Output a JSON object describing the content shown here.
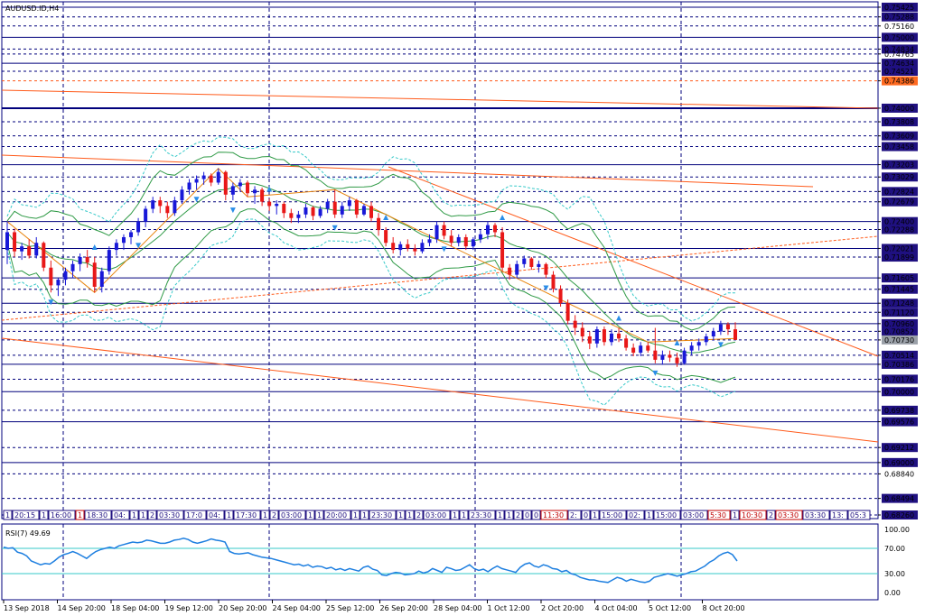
{
  "chart_title": "AUDUSD.ID,H4",
  "rsi_label": "RSI(7) 49.69",
  "rsi_levels": {
    "upper": 70,
    "lower": 30
  },
  "colors": {
    "frame": "#00007c",
    "grid": "#00007c",
    "bull": "#1818d8",
    "bear": "#e81818",
    "band_outer": "#36c9c9",
    "band_mid": "#2f9a46",
    "trendline": "#ff5a1a",
    "zigzag": "#e8840c",
    "rsi_line": "#1e7fe0",
    "rsi_level": "#36c9c9",
    "arrow": "#2a8de8",
    "price_box_dark": "#1f1080",
    "price_box_red": "#ff6a20"
  },
  "price_scale": {
    "labels": [
      "0.75425",
      "0.75288",
      "0.75160",
      "0.75000",
      "0.74834",
      "0.74765",
      "0.74634",
      "0.74521",
      "0.74386",
      "0.74000",
      "0.73808",
      "0.73609",
      "0.73458",
      "0.73203",
      "0.73029",
      "0.72824",
      "0.72679",
      "0.72400",
      "0.72288",
      "0.72021",
      "0.71899",
      "0.71605",
      "0.71445",
      "0.71248",
      "0.71120",
      "0.70960",
      "0.70852",
      "0.70730",
      "0.70514",
      "0.70386",
      "0.70176",
      "0.70000",
      "0.69738",
      "0.69576",
      "0.69212",
      "0.69000",
      "0.68840",
      "0.68494",
      "0.68260"
    ],
    "boxed": [
      "0.75425",
      "0.75288",
      "0.75000",
      "0.74834",
      "0.74634",
      "0.74521",
      "0.74386",
      "0.74000",
      "0.73808",
      "0.73609",
      "0.73458",
      "0.73203",
      "0.73029",
      "0.72824",
      "0.72679",
      "0.72400",
      "0.72288",
      "0.72021",
      "0.71899",
      "0.71605",
      "0.71445",
      "0.71248",
      "0.71120",
      "0.70960",
      "0.70852",
      "0.70730",
      "0.70514",
      "0.70386",
      "0.70176",
      "0.70000",
      "0.69738",
      "0.69576",
      "0.69212",
      "0.69000",
      "0.68494",
      "0.68260"
    ],
    "red_box": "0.74386",
    "current_price": "0.70730"
  },
  "rsi_scale": {
    "labels": [
      "100.00",
      "70.00",
      "30.00",
      "0.00"
    ]
  },
  "time_labels": [
    "13 Sep 2018",
    "14 Sep 20:00",
    "18 Sep 04:00",
    "19 Sep 12:00",
    "20 Sep 20:00",
    "24 Sep 04:00",
    "25 Sep 12:00",
    "26 Sep 20:00",
    "28 Sep 04:00",
    "1 Oct 12:00",
    "2 Oct 20:00",
    "4 Oct 04:00",
    "5 Oct 12:00",
    "8 Oct 20:00"
  ],
  "session_tags": [
    {
      "text": "1",
      "color": "#1f1080"
    },
    {
      "text": "20:15",
      "color": "#1f1080"
    },
    {
      "text": "1",
      "color": "#1f1080"
    },
    {
      "text": "16:00",
      "color": "#1f1080"
    },
    {
      "text": "1",
      "color": "#c00000"
    },
    {
      "text": "18:30",
      "color": "#1f1080"
    },
    {
      "text": "04:",
      "color": "#1f1080"
    },
    {
      "text": "1",
      "color": "#1f1080"
    },
    {
      "text": "1",
      "color": "#1f1080"
    },
    {
      "text": "2",
      "color": "#1f1080"
    },
    {
      "text": "03:30",
      "color": "#1f1080"
    },
    {
      "text": "17:0",
      "color": "#1f1080"
    },
    {
      "text": "04:",
      "color": "#1f1080"
    },
    {
      "text": "1",
      "color": "#1f1080"
    },
    {
      "text": "17:30",
      "color": "#1f1080"
    },
    {
      "text": "1",
      "color": "#1f1080"
    },
    {
      "text": "2",
      "color": "#1f1080"
    },
    {
      "text": "03:00",
      "color": "#1f1080"
    },
    {
      "text": "1",
      "color": "#1f1080"
    },
    {
      "text": "1",
      "color": "#1f1080"
    },
    {
      "text": "20:00",
      "color": "#1f1080"
    },
    {
      "text": "1",
      "color": "#1f1080"
    },
    {
      "text": "1",
      "color": "#1f1080"
    },
    {
      "text": "23:30",
      "color": "#1f1080"
    },
    {
      "text": "1",
      "color": "#1f1080"
    },
    {
      "text": "1",
      "color": "#1f1080"
    },
    {
      "text": "2",
      "color": "#1f1080"
    },
    {
      "text": "03:00",
      "color": "#1f1080"
    },
    {
      "text": "1",
      "color": "#1f1080"
    },
    {
      "text": "1",
      "color": "#1f1080"
    },
    {
      "text": "23:30",
      "color": "#1f1080"
    },
    {
      "text": "1",
      "color": "#1f1080"
    },
    {
      "text": "1",
      "color": "#1f1080"
    },
    {
      "text": "2",
      "color": "#1f1080"
    },
    {
      "text": "0",
      "color": "#1f1080"
    },
    {
      "text": "0",
      "color": "#1f1080"
    },
    {
      "text": "11:30",
      "color": "#c00000"
    },
    {
      "text": "2:",
      "color": "#1f1080"
    },
    {
      "text": "0",
      "color": "#1f1080"
    },
    {
      "text": "1",
      "color": "#1f1080"
    },
    {
      "text": "15:00",
      "color": "#1f1080"
    },
    {
      "text": "02:",
      "color": "#1f1080"
    },
    {
      "text": "1",
      "color": "#1f1080"
    },
    {
      "text": "15:00",
      "color": "#1f1080"
    },
    {
      "text": "03:00",
      "color": "#1f1080"
    },
    {
      "text": "5:30",
      "color": "#c00000"
    },
    {
      "text": "1",
      "color": "#1f1080"
    },
    {
      "text": "10:30",
      "color": "#c00000"
    },
    {
      "text": "2",
      "color": "#1f1080"
    },
    {
      "text": "03:30",
      "color": "#c00000"
    },
    {
      "text": "03:30",
      "color": "#1f1080"
    },
    {
      "text": "13:",
      "color": "#1f1080"
    },
    {
      "text": "05:3",
      "color": "#1f1080"
    },
    {
      "text": "15:55",
      "color": "#1f1080"
    },
    {
      "text": "04:00",
      "color": "#1f1080"
    },
    {
      "text": "20:",
      "color": "#1f1080"
    },
    {
      "text": "03:30",
      "color": "#1f1080"
    }
  ],
  "chart_data": {
    "type": "candlestick",
    "title": "AUDUSD.ID,H4",
    "timeframe": "H4",
    "ylim": [
      0.6826,
      0.7545
    ],
    "candles": [
      {
        "o": 0.72,
        "h": 0.724,
        "l": 0.718,
        "c": 0.7225
      },
      {
        "o": 0.7225,
        "h": 0.723,
        "l": 0.719,
        "c": 0.7198
      },
      {
        "o": 0.7198,
        "h": 0.721,
        "l": 0.7186,
        "c": 0.7205
      },
      {
        "o": 0.7205,
        "h": 0.7215,
        "l": 0.7188,
        "c": 0.7192
      },
      {
        "o": 0.7192,
        "h": 0.7218,
        "l": 0.7188,
        "c": 0.721
      },
      {
        "o": 0.721,
        "h": 0.7212,
        "l": 0.717,
        "c": 0.7175
      },
      {
        "o": 0.7175,
        "h": 0.7185,
        "l": 0.714,
        "c": 0.715
      },
      {
        "o": 0.715,
        "h": 0.716,
        "l": 0.7135,
        "c": 0.7158
      },
      {
        "o": 0.7158,
        "h": 0.7175,
        "l": 0.715,
        "c": 0.717
      },
      {
        "o": 0.717,
        "h": 0.7185,
        "l": 0.716,
        "c": 0.718
      },
      {
        "o": 0.718,
        "h": 0.7195,
        "l": 0.717,
        "c": 0.719
      },
      {
        "o": 0.719,
        "h": 0.72,
        "l": 0.7175,
        "c": 0.7182
      },
      {
        "o": 0.7182,
        "h": 0.719,
        "l": 0.714,
        "c": 0.7148
      },
      {
        "o": 0.7148,
        "h": 0.7175,
        "l": 0.714,
        "c": 0.717
      },
      {
        "o": 0.717,
        "h": 0.7205,
        "l": 0.7165,
        "c": 0.72
      },
      {
        "o": 0.72,
        "h": 0.7215,
        "l": 0.7192,
        "c": 0.721
      },
      {
        "o": 0.721,
        "h": 0.7222,
        "l": 0.72,
        "c": 0.7218
      },
      {
        "o": 0.7218,
        "h": 0.7228,
        "l": 0.7208,
        "c": 0.7225
      },
      {
        "o": 0.7225,
        "h": 0.7245,
        "l": 0.722,
        "c": 0.724
      },
      {
        "o": 0.724,
        "h": 0.7262,
        "l": 0.7232,
        "c": 0.7258
      },
      {
        "o": 0.7258,
        "h": 0.7275,
        "l": 0.7252,
        "c": 0.727
      },
      {
        "o": 0.727,
        "h": 0.7275,
        "l": 0.7252,
        "c": 0.7262
      },
      {
        "o": 0.7262,
        "h": 0.7268,
        "l": 0.7245,
        "c": 0.7252
      },
      {
        "o": 0.7252,
        "h": 0.7275,
        "l": 0.7248,
        "c": 0.727
      },
      {
        "o": 0.727,
        "h": 0.729,
        "l": 0.7265,
        "c": 0.7285
      },
      {
        "o": 0.7285,
        "h": 0.73,
        "l": 0.7278,
        "c": 0.7295
      },
      {
        "o": 0.7295,
        "h": 0.7305,
        "l": 0.7285,
        "c": 0.73
      },
      {
        "o": 0.73,
        "h": 0.731,
        "l": 0.7292,
        "c": 0.7305
      },
      {
        "o": 0.7305,
        "h": 0.7308,
        "l": 0.729,
        "c": 0.7295
      },
      {
        "o": 0.7295,
        "h": 0.7315,
        "l": 0.7292,
        "c": 0.731
      },
      {
        "o": 0.731,
        "h": 0.7312,
        "l": 0.727,
        "c": 0.7278
      },
      {
        "o": 0.7278,
        "h": 0.7295,
        "l": 0.727,
        "c": 0.729
      },
      {
        "o": 0.729,
        "h": 0.73,
        "l": 0.7282,
        "c": 0.7295
      },
      {
        "o": 0.7295,
        "h": 0.7298,
        "l": 0.7275,
        "c": 0.728
      },
      {
        "o": 0.728,
        "h": 0.729,
        "l": 0.7265,
        "c": 0.7285
      },
      {
        "o": 0.7285,
        "h": 0.7288,
        "l": 0.7262,
        "c": 0.7268
      },
      {
        "o": 0.7268,
        "h": 0.7272,
        "l": 0.7255,
        "c": 0.7262
      },
      {
        "o": 0.7262,
        "h": 0.727,
        "l": 0.725,
        "c": 0.7265
      },
      {
        "o": 0.7265,
        "h": 0.7268,
        "l": 0.7245,
        "c": 0.7252
      },
      {
        "o": 0.7252,
        "h": 0.7258,
        "l": 0.7238,
        "c": 0.7245
      },
      {
        "o": 0.7245,
        "h": 0.7255,
        "l": 0.7238,
        "c": 0.725
      },
      {
        "o": 0.725,
        "h": 0.7265,
        "l": 0.7245,
        "c": 0.726
      },
      {
        "o": 0.726,
        "h": 0.7262,
        "l": 0.7242,
        "c": 0.7248
      },
      {
        "o": 0.7248,
        "h": 0.7262,
        "l": 0.7245,
        "c": 0.7258
      },
      {
        "o": 0.7258,
        "h": 0.7272,
        "l": 0.7252,
        "c": 0.7268
      },
      {
        "o": 0.7268,
        "h": 0.7285,
        "l": 0.7245,
        "c": 0.725
      },
      {
        "o": 0.725,
        "h": 0.7268,
        "l": 0.7245,
        "c": 0.7262
      },
      {
        "o": 0.7262,
        "h": 0.7275,
        "l": 0.7255,
        "c": 0.727
      },
      {
        "o": 0.727,
        "h": 0.7272,
        "l": 0.7245,
        "c": 0.725
      },
      {
        "o": 0.725,
        "h": 0.7265,
        "l": 0.7248,
        "c": 0.7262
      },
      {
        "o": 0.7262,
        "h": 0.7268,
        "l": 0.724,
        "c": 0.7245
      },
      {
        "o": 0.7245,
        "h": 0.7252,
        "l": 0.722,
        "c": 0.7228
      },
      {
        "o": 0.7228,
        "h": 0.7232,
        "l": 0.7205,
        "c": 0.721
      },
      {
        "o": 0.721,
        "h": 0.7218,
        "l": 0.7195,
        "c": 0.72
      },
      {
        "o": 0.72,
        "h": 0.7212,
        "l": 0.7192,
        "c": 0.7208
      },
      {
        "o": 0.7208,
        "h": 0.7215,
        "l": 0.7198,
        "c": 0.7202
      },
      {
        "o": 0.7202,
        "h": 0.7208,
        "l": 0.7192,
        "c": 0.7198
      },
      {
        "o": 0.7198,
        "h": 0.7215,
        "l": 0.7195,
        "c": 0.721
      },
      {
        "o": 0.721,
        "h": 0.7222,
        "l": 0.7205,
        "c": 0.7215
      },
      {
        "o": 0.7215,
        "h": 0.724,
        "l": 0.721,
        "c": 0.7235
      },
      {
        "o": 0.7235,
        "h": 0.724,
        "l": 0.7215,
        "c": 0.722
      },
      {
        "o": 0.722,
        "h": 0.7228,
        "l": 0.7205,
        "c": 0.721
      },
      {
        "o": 0.721,
        "h": 0.7222,
        "l": 0.7205,
        "c": 0.7218
      },
      {
        "o": 0.7218,
        "h": 0.7222,
        "l": 0.72,
        "c": 0.7205
      },
      {
        "o": 0.7205,
        "h": 0.7218,
        "l": 0.72,
        "c": 0.7215
      },
      {
        "o": 0.7215,
        "h": 0.7228,
        "l": 0.721,
        "c": 0.7222
      },
      {
        "o": 0.7222,
        "h": 0.724,
        "l": 0.7215,
        "c": 0.7235
      },
      {
        "o": 0.7235,
        "h": 0.7238,
        "l": 0.7218,
        "c": 0.7225
      },
      {
        "o": 0.7225,
        "h": 0.7232,
        "l": 0.717,
        "c": 0.7175
      },
      {
        "o": 0.7175,
        "h": 0.718,
        "l": 0.7158,
        "c": 0.7165
      },
      {
        "o": 0.7165,
        "h": 0.7185,
        "l": 0.716,
        "c": 0.718
      },
      {
        "o": 0.718,
        "h": 0.7192,
        "l": 0.7175,
        "c": 0.7188
      },
      {
        "o": 0.7188,
        "h": 0.719,
        "l": 0.7172,
        "c": 0.7176
      },
      {
        "o": 0.7176,
        "h": 0.7185,
        "l": 0.7168,
        "c": 0.718
      },
      {
        "o": 0.718,
        "h": 0.7182,
        "l": 0.716,
        "c": 0.7165
      },
      {
        "o": 0.7165,
        "h": 0.717,
        "l": 0.714,
        "c": 0.7145
      },
      {
        "o": 0.7145,
        "h": 0.715,
        "l": 0.712,
        "c": 0.7125
      },
      {
        "o": 0.7125,
        "h": 0.713,
        "l": 0.7095,
        "c": 0.71
      },
      {
        "o": 0.71,
        "h": 0.7108,
        "l": 0.708,
        "c": 0.709
      },
      {
        "o": 0.709,
        "h": 0.7098,
        "l": 0.707,
        "c": 0.7078
      },
      {
        "o": 0.7078,
        "h": 0.7085,
        "l": 0.706,
        "c": 0.7068
      },
      {
        "o": 0.7068,
        "h": 0.7092,
        "l": 0.7062,
        "c": 0.7088
      },
      {
        "o": 0.7088,
        "h": 0.7092,
        "l": 0.7065,
        "c": 0.707
      },
      {
        "o": 0.707,
        "h": 0.7088,
        "l": 0.7065,
        "c": 0.7082
      },
      {
        "o": 0.7082,
        "h": 0.709,
        "l": 0.707,
        "c": 0.7075
      },
      {
        "o": 0.7075,
        "h": 0.708,
        "l": 0.7058,
        "c": 0.7062
      },
      {
        "o": 0.7062,
        "h": 0.7068,
        "l": 0.705,
        "c": 0.7055
      },
      {
        "o": 0.7055,
        "h": 0.707,
        "l": 0.705,
        "c": 0.7065
      },
      {
        "o": 0.7065,
        "h": 0.707,
        "l": 0.7055,
        "c": 0.7058
      },
      {
        "o": 0.7058,
        "h": 0.709,
        "l": 0.704,
        "c": 0.7045
      },
      {
        "o": 0.7045,
        "h": 0.7058,
        "l": 0.7038,
        "c": 0.7052
      },
      {
        "o": 0.7052,
        "h": 0.7058,
        "l": 0.7042,
        "c": 0.7048
      },
      {
        "o": 0.7048,
        "h": 0.7055,
        "l": 0.7035,
        "c": 0.704
      },
      {
        "o": 0.704,
        "h": 0.7062,
        "l": 0.7038,
        "c": 0.7058
      },
      {
        "o": 0.7058,
        "h": 0.707,
        "l": 0.7052,
        "c": 0.7065
      },
      {
        "o": 0.7065,
        "h": 0.7075,
        "l": 0.7058,
        "c": 0.707
      },
      {
        "o": 0.707,
        "h": 0.7082,
        "l": 0.7065,
        "c": 0.7078
      },
      {
        "o": 0.7078,
        "h": 0.709,
        "l": 0.7072,
        "c": 0.7085
      },
      {
        "o": 0.7085,
        "h": 0.71,
        "l": 0.708,
        "c": 0.7095
      },
      {
        "o": 0.7095,
        "h": 0.7098,
        "l": 0.708,
        "c": 0.7088
      },
      {
        "o": 0.7088,
        "h": 0.7098,
        "l": 0.7075,
        "c": 0.7073
      }
    ],
    "rsi": [
      72,
      70,
      71,
      64,
      62,
      58,
      50,
      47,
      44,
      46,
      45,
      50,
      56,
      60,
      62,
      65,
      62,
      58,
      54,
      60,
      65,
      68,
      70,
      72,
      70,
      74,
      76,
      78,
      80,
      79,
      80,
      83,
      82,
      80,
      78,
      78,
      80,
      83,
      84,
      86,
      84,
      80,
      78,
      80,
      82,
      85,
      83,
      82,
      80,
      65,
      62,
      61,
      62,
      63,
      60,
      58,
      56,
      55,
      54,
      52,
      50,
      48,
      46,
      44,
      45,
      42,
      44,
      40,
      42,
      41,
      38,
      40,
      36,
      38,
      35,
      38,
      36,
      34,
      40,
      42,
      37,
      35,
      28,
      27,
      30,
      32,
      31,
      28,
      29,
      30,
      34,
      31,
      33,
      38,
      35,
      32,
      40,
      38,
      35,
      36,
      40,
      44,
      38,
      35,
      37,
      33,
      38,
      42,
      38,
      36,
      34,
      32,
      40,
      45,
      47,
      42,
      40,
      44,
      42,
      38,
      37,
      33,
      35,
      30,
      28,
      24,
      22,
      20,
      20,
      18,
      17,
      16,
      20,
      24,
      22,
      18,
      21,
      19,
      17,
      16,
      18,
      24,
      26,
      28,
      30,
      28,
      26,
      28,
      30,
      33,
      34,
      38,
      42,
      48,
      52,
      58,
      62,
      64,
      60,
      50
    ]
  }
}
